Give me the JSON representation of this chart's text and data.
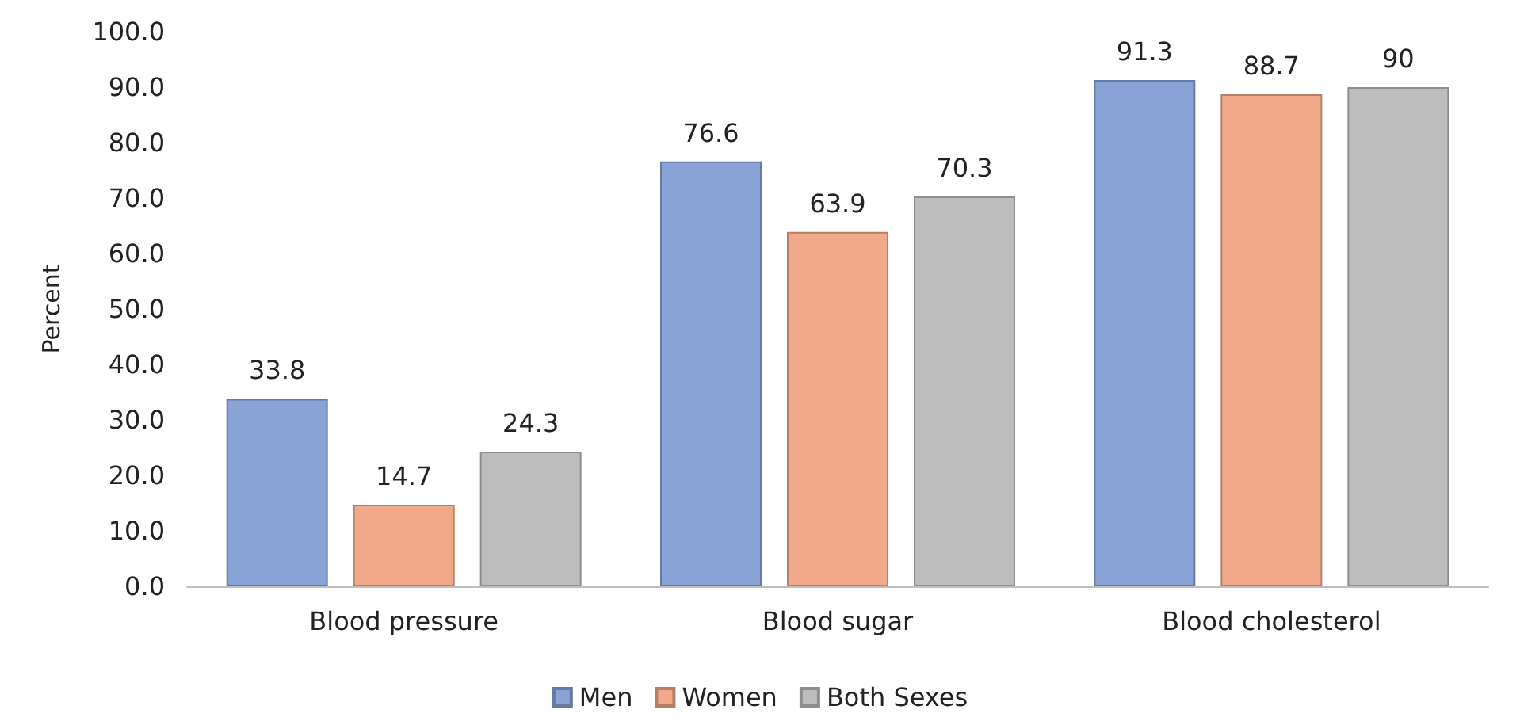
{
  "chart_data": {
    "type": "bar",
    "ylabel": "Percent",
    "categories": [
      "Blood pressure",
      "Blood sugar",
      "Blood cholesterol"
    ],
    "series": [
      {
        "name": "Men",
        "color": "#8aa3d6",
        "values": [
          33.8,
          76.6,
          91.3
        ]
      },
      {
        "name": "Women",
        "color": "#f2a989",
        "values": [
          14.7,
          63.9,
          88.7
        ]
      },
      {
        "name": "Both Sexes",
        "color": "#bdbdbd",
        "values": [
          24.3,
          70.3,
          90
        ]
      }
    ],
    "ylim": [
      0,
      100
    ],
    "yticks": [
      {
        "value": 0,
        "label": "0.0"
      },
      {
        "value": 10,
        "label": "10.0"
      },
      {
        "value": 20,
        "label": "20.0"
      },
      {
        "value": 30,
        "label": "30.0"
      },
      {
        "value": 40,
        "label": "40.0"
      },
      {
        "value": 50,
        "label": "50.0"
      },
      {
        "value": 60,
        "label": "60.0"
      },
      {
        "value": 70,
        "label": "70.0"
      },
      {
        "value": 80,
        "label": "80.0"
      },
      {
        "value": 90,
        "label": "90.0"
      },
      {
        "value": 100,
        "label": "100.0"
      }
    ],
    "data_labels": true,
    "grid": false,
    "legend": "bottom"
  }
}
